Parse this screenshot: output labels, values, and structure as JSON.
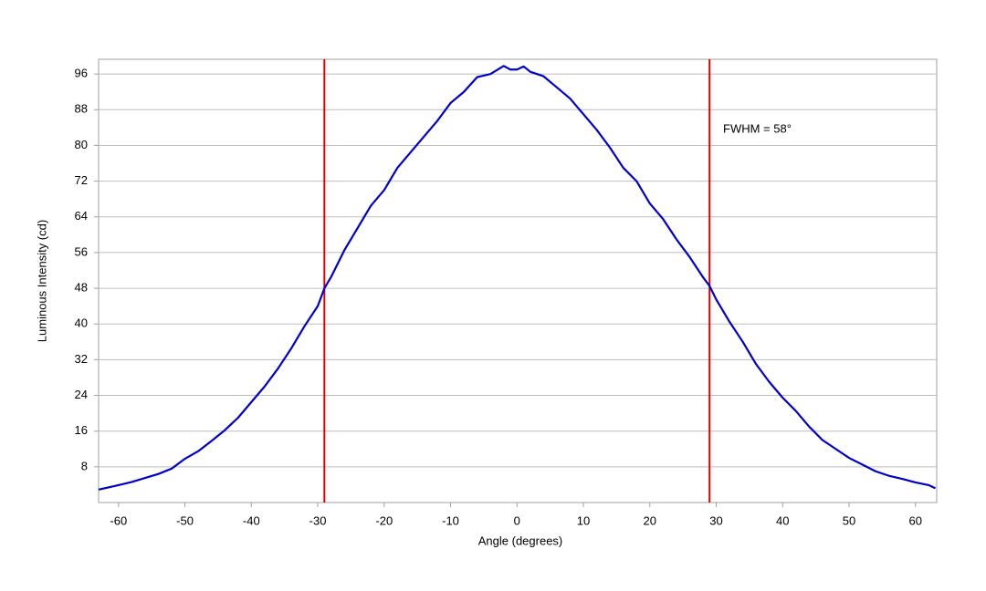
{
  "chart_data": {
    "type": "line",
    "xlabel": "Angle (degrees)",
    "ylabel": "Luminous Intensity (cd)",
    "annotation": "FWHM = 58°",
    "x": [
      -63,
      -60,
      -58,
      -56,
      -54,
      -52,
      -50,
      -48,
      -46,
      -44,
      -42,
      -40,
      -38,
      -36,
      -34,
      -32,
      -30,
      -29,
      -28,
      -26,
      -24,
      -22,
      -20,
      -18,
      -16,
      -14,
      -12,
      -10,
      -8,
      -6,
      -4,
      -2,
      -1,
      0,
      1,
      2,
      4,
      6,
      8,
      10,
      12,
      14,
      16,
      18,
      20,
      22,
      24,
      26,
      28,
      29,
      30,
      32,
      34,
      36,
      38,
      40,
      42,
      44,
      46,
      48,
      50,
      52,
      54,
      56,
      58,
      60,
      62,
      63
    ],
    "series": [
      {
        "color": "#0000cc",
        "values": [
          2.9,
          3.9,
          4.6,
          5.5,
          6.4,
          7.6,
          9.8,
          11.5,
          13.8,
          16.2,
          19.0,
          22.5,
          26.0,
          30.0,
          34.5,
          39.5,
          44.0,
          48.0,
          50.5,
          56.5,
          61.5,
          66.5,
          70.0,
          75.0,
          78.5,
          82.0,
          85.5,
          89.5,
          92.0,
          95.3,
          96.0,
          97.8,
          97.0,
          97.0,
          97.7,
          96.5,
          95.5,
          93.0,
          90.5,
          87.0,
          83.5,
          79.5,
          75.0,
          72.0,
          67.0,
          63.5,
          59.0,
          55.0,
          50.5,
          48.5,
          45.5,
          40.5,
          36.0,
          31.0,
          27.0,
          23.5,
          20.5,
          17.0,
          14.0,
          12.0,
          10.0,
          8.5,
          7.0,
          6.0,
          5.3,
          4.5,
          3.9,
          3.2
        ]
      }
    ],
    "vlines": [
      -29,
      29
    ],
    "vline_color": "#dd0000",
    "xlim": [
      -63,
      63.2
    ],
    "ylim": [
      0,
      99.3
    ],
    "xticks": [
      -60,
      -50,
      -40,
      -30,
      -20,
      -10,
      0,
      10,
      20,
      30,
      40,
      50,
      60
    ],
    "yticks": [
      8,
      16,
      24,
      32,
      40,
      48,
      56,
      64,
      72,
      80,
      88,
      96
    ],
    "grid": true
  }
}
